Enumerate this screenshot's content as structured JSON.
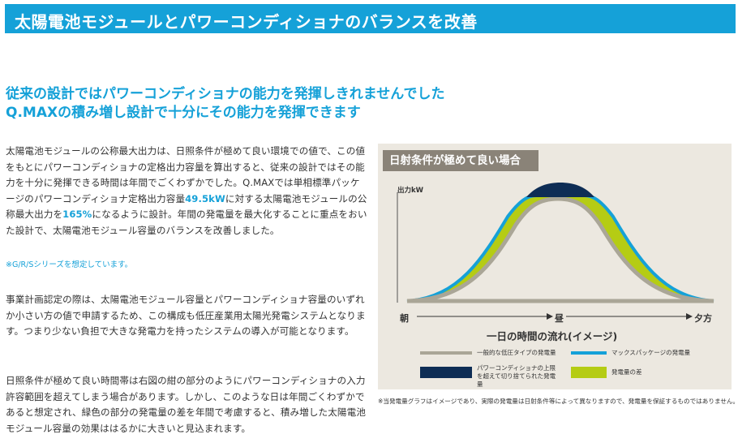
{
  "page": {
    "title": "太陽電池モジュールとパワーコンディショナのバランスを改善",
    "subtitle1": "従来の設計ではパワーコンディショナの能力を発揮しきれませんでした",
    "subtitle2": "Q.MAXの積み増し設計で十分にその能力を発揮できます"
  },
  "body": {
    "p1_a": "太陽電池モジュールの公称最大出力は、日照条件が極めて良い環境での値で、この値をもとにパワーコンディショナの定格出力容量を算出すると、従来の設計ではその能力を十分に発揮できる時間は年間でごくわずかでした。Q.MAXでは単相標準パッケージのパワーコンディショナ定格出力容量",
    "p1_h1": "49.5kW",
    "p1_b": "に対する太陽電池モジュールの公称最大出力を",
    "p1_h2": "165%",
    "p1_c": "になるように設計。年間の発電量を最大化することに重点をおいた設計で、太陽電池モジュール容量のバランスを改善しました。",
    "note": "※G/R/Sシリーズを想定しています。",
    "p2": "事業計画認定の際は、太陽電池モジュール容量とパワーコンディショナ容量のいずれか小さい方の値で申請するため、この構成も低圧産業用太陽光発電システムとなります。つまり少ない負担で大きな発電力を持ったシステムの導入が可能となります。",
    "p3": "日照条件が極めて良い時間帯は右図の紺の部分のようにパワーコンディショナの入力許容範囲を超えてしまう場合があります。しかし、このような日は年間ごくわずかであると想定され、緑色の部分の発電量の差を年間で考慮すると、積み増した太陽電池モジュール容量の効果ははるかに大きいと見込まれます。"
  },
  "chart": {
    "panel_title": "日射条件が極めて良い場合",
    "y_unit": "出力kW",
    "x_morning": "朝",
    "x_noon": "昼",
    "x_evening": "夕方",
    "x_title": "一日の時間の流れ(イメージ)",
    "legend": {
      "l1": "一般的な低圧タイプの発電量",
      "l2": "マックスパッケージの発電量",
      "l3": "パワーコンディショナの上限を超えて切り捨てられた発電量",
      "l4": "発電量の差"
    },
    "colors": {
      "low_voltage": "#aaa697",
      "max_package": "#15a1d8",
      "clipped": "#0e2d55",
      "difference": "#b5cc14",
      "panel_bg": "#ece8e0",
      "accent": "#15a1d8"
    },
    "footnote": "※当発電量グラフはイメージであり、実際の発電量は日射条件等によって異なりますので、発電量を保証するものではありません。"
  }
}
